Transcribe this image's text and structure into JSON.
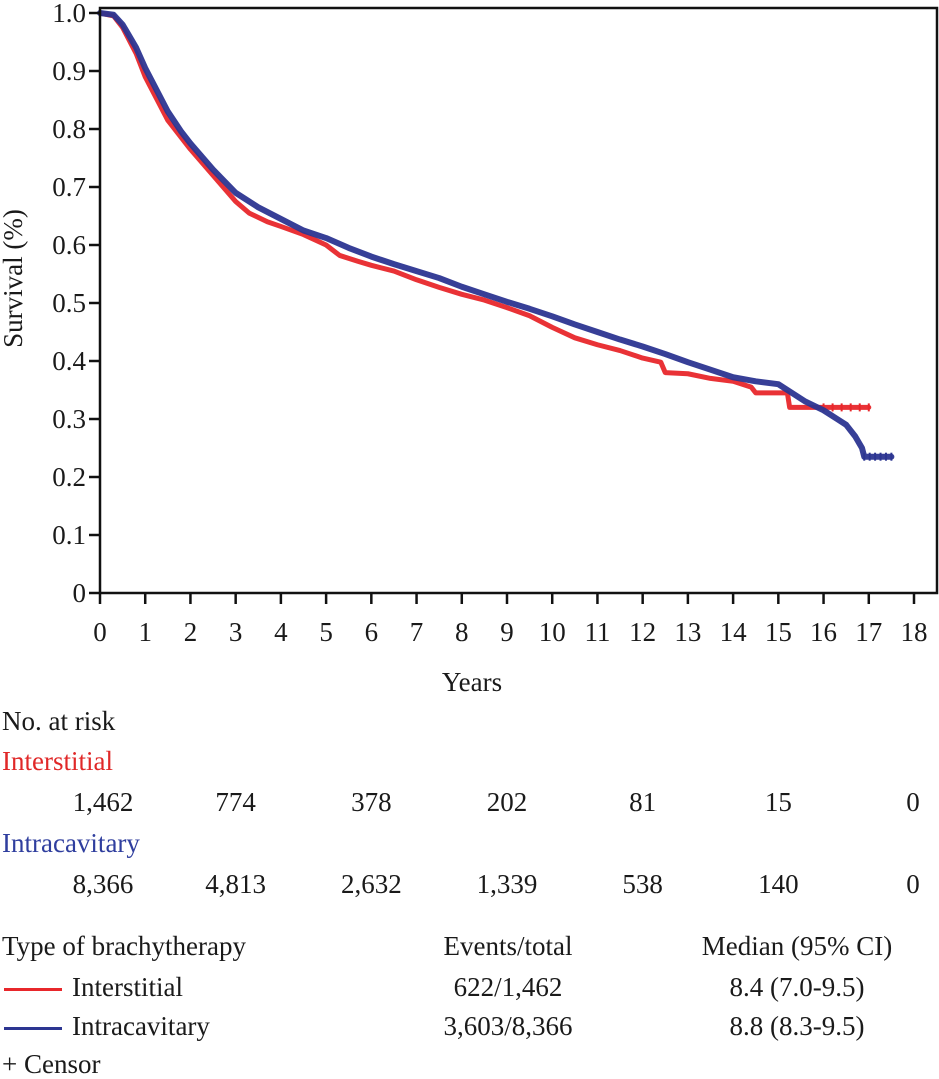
{
  "chart_data": {
    "type": "line",
    "subtype": "kaplan-meier",
    "title": "",
    "xlabel": "Years",
    "ylabel": "Survival (%)",
    "xlim": [
      0,
      18
    ],
    "ylim": [
      0,
      1.0
    ],
    "x_ticks": [
      "0",
      "1",
      "2",
      "3",
      "4",
      "5",
      "6",
      "7",
      "8",
      "9",
      "10",
      "11",
      "12",
      "13",
      "14",
      "15",
      "16",
      "17",
      "18"
    ],
    "y_ticks": [
      "0",
      "0.1",
      "0.2",
      "0.3",
      "0.4",
      "0.5",
      "0.6",
      "0.7",
      "0.8",
      "0.9",
      "1.0"
    ],
    "y_tick_values": [
      0,
      0.1,
      0.2,
      0.3,
      0.4,
      0.5,
      0.6,
      0.7,
      0.8,
      0.9,
      1.0
    ],
    "grid": false,
    "series": [
      {
        "name": "Interstitial",
        "color": "#e8272b",
        "points": [
          [
            0,
            1.0
          ],
          [
            0.3,
            0.995
          ],
          [
            0.5,
            0.975
          ],
          [
            0.8,
            0.93
          ],
          [
            1.0,
            0.89
          ],
          [
            1.2,
            0.86
          ],
          [
            1.5,
            0.815
          ],
          [
            1.8,
            0.785
          ],
          [
            2.0,
            0.765
          ],
          [
            2.5,
            0.72
          ],
          [
            3.0,
            0.675
          ],
          [
            3.3,
            0.655
          ],
          [
            3.7,
            0.64
          ],
          [
            4.0,
            0.632
          ],
          [
            4.5,
            0.618
          ],
          [
            5.0,
            0.6
          ],
          [
            5.3,
            0.582
          ],
          [
            5.7,
            0.572
          ],
          [
            6.0,
            0.565
          ],
          [
            6.5,
            0.555
          ],
          [
            7.0,
            0.54
          ],
          [
            7.5,
            0.527
          ],
          [
            8.0,
            0.515
          ],
          [
            8.5,
            0.505
          ],
          [
            9.0,
            0.492
          ],
          [
            9.5,
            0.478
          ],
          [
            10.0,
            0.458
          ],
          [
            10.5,
            0.44
          ],
          [
            11.0,
            0.428
          ],
          [
            11.5,
            0.418
          ],
          [
            12.0,
            0.405
          ],
          [
            12.4,
            0.398
          ],
          [
            12.5,
            0.38
          ],
          [
            13.0,
            0.378
          ],
          [
            13.5,
            0.37
          ],
          [
            14.0,
            0.365
          ],
          [
            14.4,
            0.355
          ],
          [
            14.5,
            0.345
          ],
          [
            15.2,
            0.345
          ],
          [
            15.25,
            0.32
          ],
          [
            16.0,
            0.32
          ],
          [
            17.0,
            0.32
          ]
        ]
      },
      {
        "name": "Intracavitary",
        "color": "#2c3591",
        "points": [
          [
            0,
            1.0
          ],
          [
            0.3,
            0.997
          ],
          [
            0.5,
            0.98
          ],
          [
            0.8,
            0.94
          ],
          [
            1.0,
            0.905
          ],
          [
            1.2,
            0.875
          ],
          [
            1.5,
            0.83
          ],
          [
            1.8,
            0.795
          ],
          [
            2.0,
            0.775
          ],
          [
            2.5,
            0.73
          ],
          [
            3.0,
            0.69
          ],
          [
            3.5,
            0.665
          ],
          [
            4.0,
            0.645
          ],
          [
            4.5,
            0.625
          ],
          [
            5.0,
            0.612
          ],
          [
            5.5,
            0.595
          ],
          [
            6.0,
            0.58
          ],
          [
            6.5,
            0.567
          ],
          [
            7.0,
            0.555
          ],
          [
            7.5,
            0.543
          ],
          [
            8.0,
            0.528
          ],
          [
            8.5,
            0.515
          ],
          [
            9.0,
            0.502
          ],
          [
            9.5,
            0.49
          ],
          [
            10.0,
            0.477
          ],
          [
            10.5,
            0.463
          ],
          [
            11.0,
            0.45
          ],
          [
            11.5,
            0.437
          ],
          [
            12.0,
            0.425
          ],
          [
            12.5,
            0.412
          ],
          [
            13.0,
            0.398
          ],
          [
            13.5,
            0.385
          ],
          [
            14.0,
            0.372
          ],
          [
            14.5,
            0.365
          ],
          [
            15.0,
            0.36
          ],
          [
            15.3,
            0.345
          ],
          [
            15.6,
            0.33
          ],
          [
            16.0,
            0.315
          ],
          [
            16.3,
            0.3
          ],
          [
            16.5,
            0.29
          ],
          [
            16.7,
            0.27
          ],
          [
            16.85,
            0.25
          ],
          [
            16.9,
            0.235
          ],
          [
            17.5,
            0.235
          ]
        ]
      }
    ],
    "at_risk": {
      "title": "No. at risk",
      "times": [
        0,
        3,
        6,
        9,
        12,
        15,
        18
      ],
      "groups": [
        {
          "name": "Interstitial",
          "values": [
            "1,462",
            "774",
            "378",
            "202",
            "81",
            "15",
            "0"
          ]
        },
        {
          "name": "Intracavitary",
          "values": [
            "8,366",
            "4,813",
            "2,632",
            "1,339",
            "538",
            "140",
            "0"
          ]
        }
      ]
    },
    "legend": {
      "headers": [
        "Type of brachytherapy",
        "Events/total",
        "Median (95% CI)"
      ],
      "rows": [
        {
          "label": "Interstitial",
          "events_total": "622/1,462",
          "median_ci": "8.4 (7.0-9.5)"
        },
        {
          "label": "Intracavitary",
          "events_total": "3,603/8,366",
          "median_ci": "8.8 (8.3-9.5)"
        }
      ],
      "censor_label": "+ Censor"
    }
  }
}
